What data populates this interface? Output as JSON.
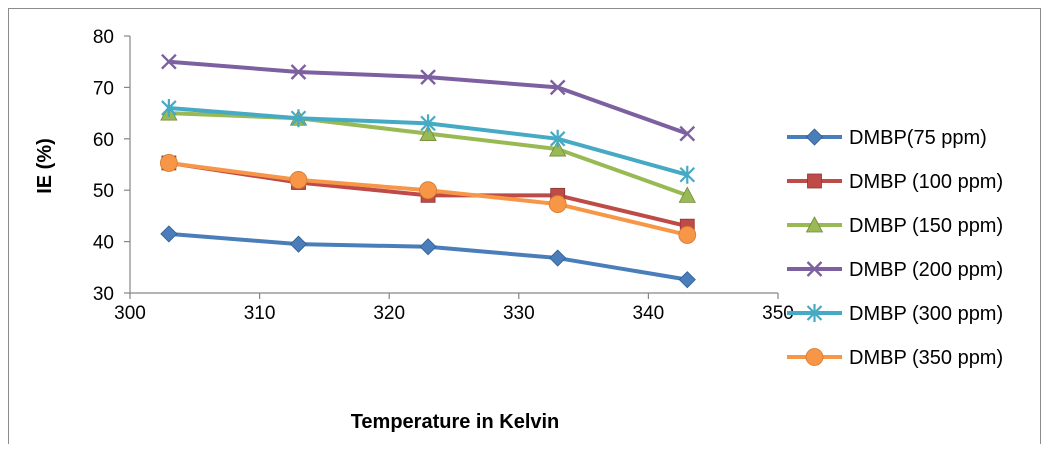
{
  "chart_data": {
    "type": "line",
    "xlabel": "Temperature in Kelvin",
    "ylabel": "IE (%)",
    "xlim": [
      300,
      350
    ],
    "ylim": [
      30,
      80
    ],
    "xticks": [
      300,
      310,
      320,
      330,
      340,
      350
    ],
    "yticks": [
      30,
      40,
      50,
      60,
      70,
      80
    ],
    "x": [
      303,
      313,
      323,
      333,
      343
    ],
    "grid": false,
    "legend_position": "right",
    "series": [
      {
        "name": "DMBP(75 ppm)",
        "marker": "diamond",
        "color": "#4a7ebb",
        "values": [
          41.5,
          39.5,
          39,
          36.8,
          32.6
        ]
      },
      {
        "name": "DMBP (100 ppm)",
        "marker": "square",
        "color": "#be4b48",
        "values": [
          55.3,
          51.5,
          49,
          49,
          43
        ]
      },
      {
        "name": "DMBP (150 ppm)",
        "marker": "triangle",
        "color": "#98b954",
        "values": [
          65,
          64,
          61,
          58,
          49
        ]
      },
      {
        "name": "DMBP (200 ppm)",
        "marker": "x",
        "color": "#7d60a0",
        "values": [
          75,
          73,
          72,
          70,
          61
        ]
      },
      {
        "name": "DMBP (300 ppm)",
        "marker": "star",
        "color": "#46aac5",
        "values": [
          66,
          64,
          63,
          60,
          53
        ]
      },
      {
        "name": "DMBP (350 ppm)",
        "marker": "circle",
        "color": "#f79646",
        "values": [
          55.3,
          52,
          50,
          47.3,
          41.3
        ]
      }
    ]
  }
}
